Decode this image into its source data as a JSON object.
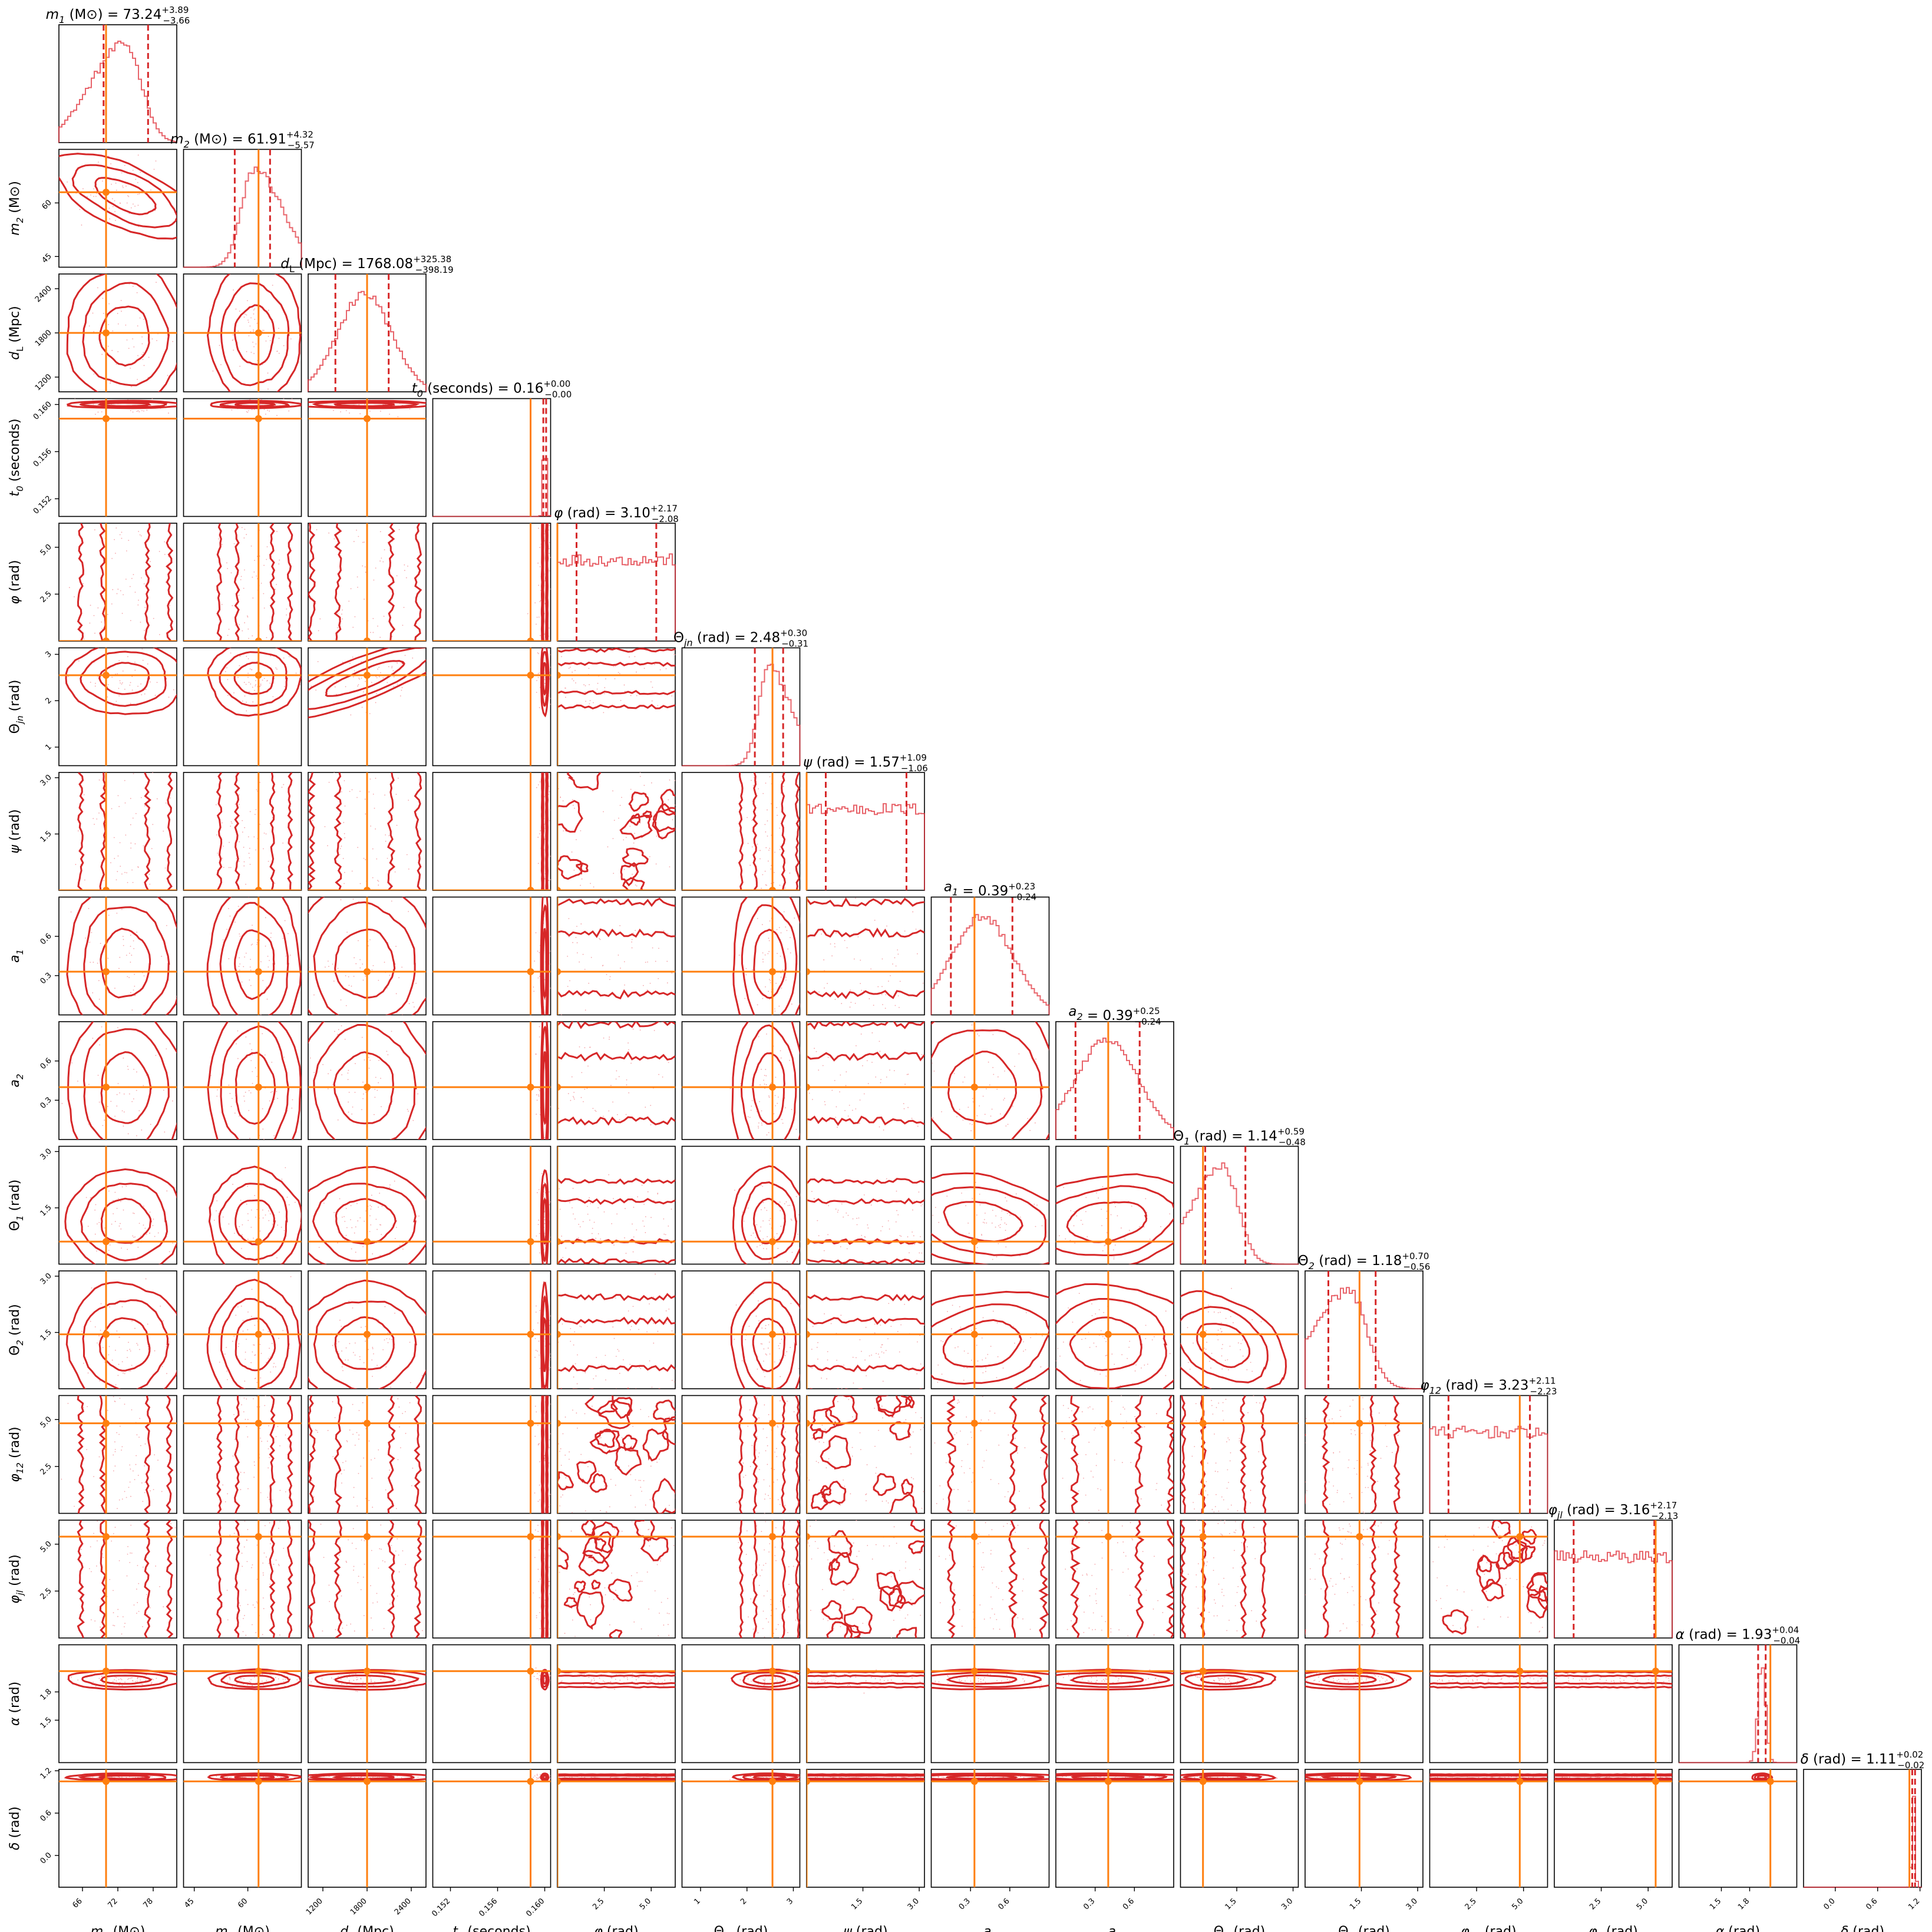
{
  "chart_data": {
    "type": "corner",
    "parameters": [
      {
        "label": "m1 (M⊙)",
        "median": 73.24,
        "plus": 3.89,
        "minus": 3.66,
        "range": [
          62,
          82
        ],
        "truth": 70.0,
        "ticks": [
          "66",
          "72",
          "78"
        ],
        "tick_values": [
          66,
          72,
          78
        ],
        "shape": "skewlow"
      },
      {
        "label": "m2 (M⊙)",
        "median": 61.91,
        "plus": 4.32,
        "minus": 5.57,
        "range": [
          42,
          75
        ],
        "truth": 63.0,
        "ticks": [
          "45",
          "60"
        ],
        "tick_values": [
          45,
          60
        ],
        "shape": "skewhigh"
      },
      {
        "label": "dL (Mpc)",
        "median": 1768.08,
        "plus": 325.38,
        "minus": 398.19,
        "range": [
          1000,
          2600
        ],
        "truth": 1800.0,
        "ticks": [
          "1200",
          "1800",
          "2400"
        ],
        "tick_values": [
          1200,
          1800,
          2400
        ],
        "shape": "normal"
      },
      {
        "label": "t0 (seconds)",
        "median": 0.16,
        "plus": 0.0,
        "minus": 0.0,
        "range": [
          0.1505,
          0.1605
        ],
        "truth": 0.1588,
        "ticks": [
          "0.152",
          "0.156",
          "0.160"
        ],
        "tick_values": [
          0.152,
          0.156,
          0.16
        ],
        "shape": "narrow"
      },
      {
        "label": "φ (rad)",
        "median": 3.1,
        "plus": 2.17,
        "minus": 2.08,
        "range": [
          0.0,
          6.28
        ],
        "truth": 0.0,
        "ticks": [
          "2.5",
          "5.0"
        ],
        "tick_values": [
          2.5,
          5.0
        ],
        "shape": "flat"
      },
      {
        "label": "Θjn (rad)",
        "median": 2.48,
        "plus": 0.3,
        "minus": 0.31,
        "range": [
          0.6,
          3.14
        ],
        "truth": 2.55,
        "ticks": [
          "1",
          "2",
          "3"
        ],
        "tick_values": [
          1,
          2,
          3
        ],
        "shape": "skewhigh"
      },
      {
        "label": "ψ (rad)",
        "median": 1.57,
        "plus": 1.09,
        "minus": 1.06,
        "range": [
          0.0,
          3.14
        ],
        "truth": 0.0,
        "ticks": [
          "1.5",
          "3.0"
        ],
        "tick_values": [
          1.5,
          3.0
        ],
        "shape": "flat"
      },
      {
        "label": "a1",
        "median": 0.39,
        "plus": 0.23,
        "minus": 0.24,
        "range": [
          0.0,
          0.9
        ],
        "truth": 0.33,
        "ticks": [
          "0.3",
          "0.6"
        ],
        "tick_values": [
          0.3,
          0.6
        ],
        "shape": "broad"
      },
      {
        "label": "a2",
        "median": 0.39,
        "plus": 0.25,
        "minus": 0.24,
        "range": [
          0.0,
          0.9
        ],
        "truth": 0.4,
        "ticks": [
          "0.3",
          "0.6"
        ],
        "tick_values": [
          0.3,
          0.6
        ],
        "shape": "broad"
      },
      {
        "label": "Θ1 (rad)",
        "median": 1.14,
        "plus": 0.59,
        "minus": 0.48,
        "range": [
          0.0,
          3.14
        ],
        "truth": 0.6,
        "ticks": [
          "1.5",
          "3.0"
        ],
        "tick_values": [
          1.5,
          3.0
        ],
        "shape": "skewlow"
      },
      {
        "label": "Θ2 (rad)",
        "median": 1.18,
        "plus": 0.7,
        "minus": 0.56,
        "range": [
          0.0,
          3.14
        ],
        "truth": 1.45,
        "ticks": [
          "1.5",
          "3.0"
        ],
        "tick_values": [
          1.5,
          3.0
        ],
        "shape": "skewlow"
      },
      {
        "label": "φ12 (rad)",
        "median": 3.23,
        "plus": 2.11,
        "minus": 2.23,
        "range": [
          0.0,
          6.28
        ],
        "truth": 4.8,
        "ticks": [
          "2.5",
          "5.0"
        ],
        "tick_values": [
          2.5,
          5.0
        ],
        "shape": "flat"
      },
      {
        "label": "φjl (rad)",
        "median": 3.16,
        "plus": 2.17,
        "minus": 2.13,
        "range": [
          0.0,
          6.28
        ],
        "truth": 5.4,
        "ticks": [
          "2.5",
          "5.0"
        ],
        "tick_values": [
          2.5,
          5.0
        ],
        "shape": "flat"
      },
      {
        "label": "α (rad)",
        "median": 1.93,
        "plus": 0.04,
        "minus": 0.04,
        "range": [
          1.05,
          2.3
        ],
        "truth": 2.02,
        "ticks": [
          "1.5",
          "1.8"
        ],
        "tick_values": [
          1.5,
          1.8
        ],
        "shape": "narrow"
      },
      {
        "label": "δ (rad)",
        "median": 1.11,
        "plus": 0.02,
        "minus": 0.02,
        "range": [
          -0.45,
          1.22
        ],
        "truth": 1.05,
        "ticks": [
          "0.0",
          "0.6",
          "1.2"
        ],
        "tick_values": [
          0.0,
          0.6,
          1.2
        ],
        "shape": "narrow"
      }
    ],
    "titles": [
      "m1 (M⊙) = 73.24 +3.89 −3.66",
      "m2 (M⊙) = 61.91 +4.32 −5.57",
      "dL (Mpc) = 1768.08 +325.38 −398.19",
      "t0 (seconds) = 0.16 +0.00 −0.00",
      "φ (rad) = 3.10 +2.17 −2.08",
      "Θjn (rad) = 2.48 +0.30 −0.31",
      "ψ (rad) = 1.57 +1.09 −1.06",
      "a1 = 0.39 +0.23 −0.24",
      "a2 = 0.39 +0.25 −0.24",
      "Θ1 (rad) = 1.14 +0.59 −0.48",
      "Θ2 (rad) = 1.18 +0.70 −0.56",
      "φ12 (rad) = 3.23 +2.11 −2.23",
      "φjl (rad) = 3.16 +2.17 −2.13",
      "α (rad) = 1.93 +0.04 −0.04",
      "δ (rad) = 1.11 +0.02 −0.02"
    ],
    "correlations": {
      "0-1": -0.65,
      "2-5": 0.85,
      "7-9": -0.3,
      "8-9": 0.25,
      "9-10": -0.55,
      "7-10": 0.3
    },
    "colors": {
      "posterior": "#d62728",
      "truth": "#ff7f0e",
      "axes": "#000000"
    }
  }
}
